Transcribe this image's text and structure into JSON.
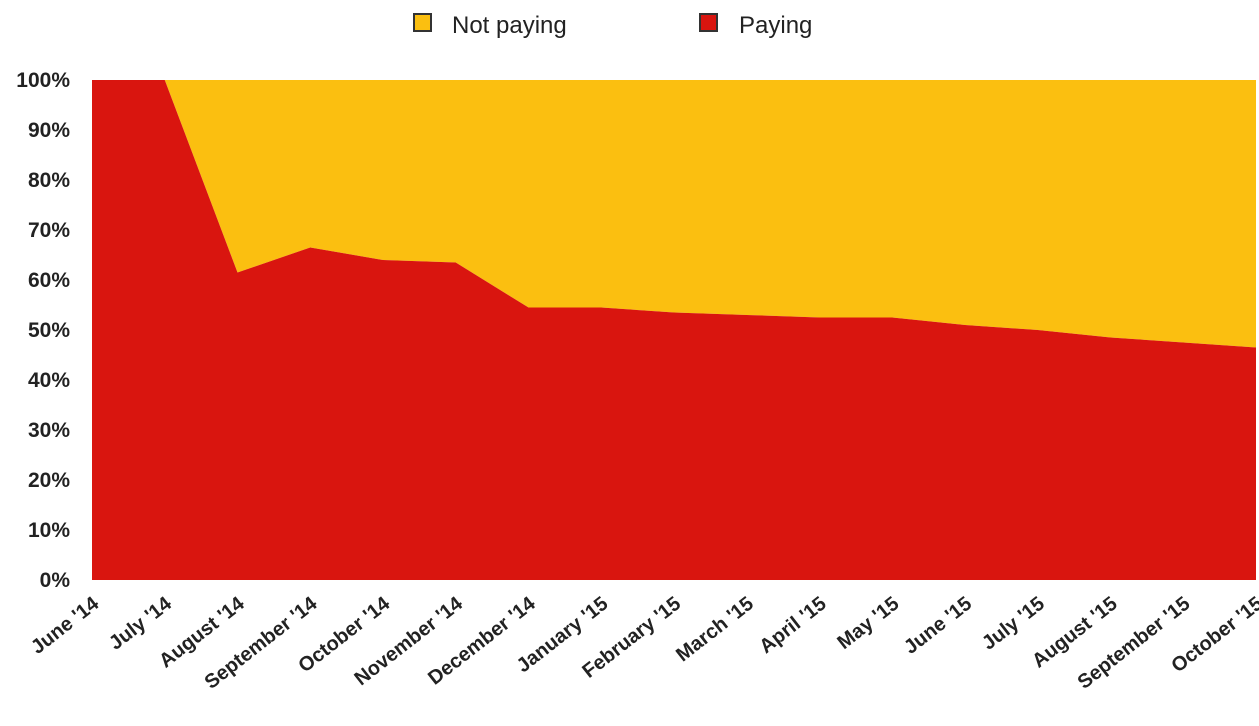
{
  "chart_data": {
    "type": "area",
    "stacked": true,
    "percent": true,
    "categories": [
      "June '14",
      "July '14",
      "August '14",
      "September '14",
      "October '14",
      "November '14",
      "December '14",
      "January '15",
      "February '15",
      "March '15",
      "April '15",
      "May '15",
      "June '15",
      "July '15",
      "August '15",
      "September '15",
      "October '15"
    ],
    "series": [
      {
        "name": "Paying",
        "color": "#d9150f",
        "values": [
          100,
          100,
          61.5,
          66.5,
          64,
          63.5,
          54.5,
          54.5,
          53.5,
          53,
          52.5,
          52.5,
          51,
          50,
          48.5,
          47.5,
          46.5
        ]
      },
      {
        "name": "Not paying",
        "color": "#fbbf10",
        "values": [
          0,
          0,
          38.5,
          33.5,
          36,
          36.5,
          45.5,
          45.5,
          46.5,
          47,
          47.5,
          47.5,
          49,
          50,
          51.5,
          52.5,
          53.5
        ]
      }
    ],
    "legend": {
      "position": "top",
      "items": [
        "Not paying",
        "Paying"
      ]
    },
    "ylim": [
      0,
      100
    ],
    "yticks": [
      "0%",
      "10%",
      "20%",
      "30%",
      "40%",
      "50%",
      "60%",
      "70%",
      "80%",
      "90%",
      "100%"
    ],
    "grid": false
  }
}
